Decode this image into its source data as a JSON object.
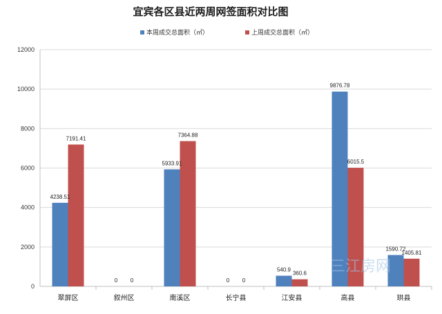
{
  "chart_data": {
    "type": "bar",
    "title": "宜宾各区县近两周网签面积对比图",
    "xlabel": "",
    "ylabel": "",
    "categories": [
      "翠屏区",
      "叙州区",
      "南溪区",
      "长宁县",
      "江安县",
      "高县",
      "珙县"
    ],
    "series": [
      {
        "name": "本周成交总面积（㎡）",
        "color": "#4f81bd",
        "values": [
          4238.51,
          0,
          5933.91,
          0,
          540.9,
          9876.78,
          1590.72
        ],
        "labels": [
          "4238.51",
          "0",
          "5933.91",
          "0",
          "540.9",
          "9876.78",
          "1590.72"
        ]
      },
      {
        "name": "上周成交总面积（㎡）",
        "color": "#c0504d",
        "values": [
          7191.41,
          0,
          7364.88,
          0,
          360.6,
          6015.5,
          1405.81
        ],
        "labels": [
          "7191.41",
          "0",
          "7364.88",
          "0",
          "360.6",
          "6015.5",
          "1405.81"
        ]
      }
    ],
    "ylim": [
      0,
      12000
    ],
    "yticks": [
      0,
      2000,
      4000,
      6000,
      8000,
      10000,
      12000
    ],
    "grid": true,
    "legend_position": "top"
  },
  "watermark_text": "三江房网"
}
